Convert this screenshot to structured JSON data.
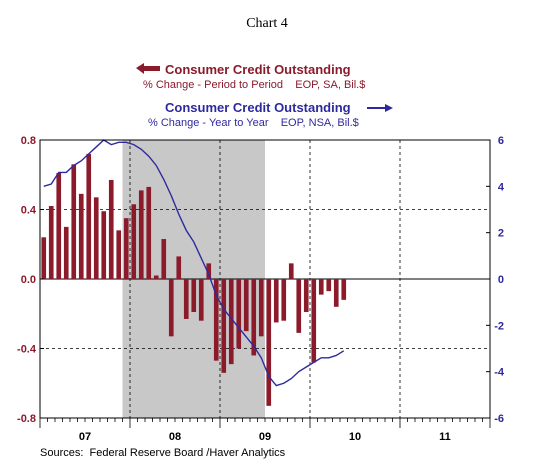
{
  "chart_data": {
    "type": "bar+line",
    "title": "Chart 4",
    "legend": {
      "bar_series": {
        "name": "Consumer Credit Outstanding",
        "subtitle": "% Change - Period to Period    EOP, SA, Bil.$",
        "color": "#8b1a2b",
        "axis": "left"
      },
      "line_series": {
        "name": "Consumer Credit Outstanding",
        "subtitle": "% Change - Year to Year    EOP, NSA, Bil.$",
        "color": "#2e2a9e",
        "axis": "right"
      }
    },
    "left_axis": {
      "ylim": [
        -0.8,
        0.8
      ],
      "ticks": [
        0.8,
        0.4,
        0.0,
        -0.4,
        -0.8
      ],
      "tick_labels": [
        "0.8",
        "0.4",
        "0.0",
        "-0.4",
        "-0.8"
      ],
      "color": "#8b1a2b"
    },
    "right_axis": {
      "ylim": [
        -6,
        6
      ],
      "ticks": [
        6,
        4,
        2,
        0,
        -2,
        -4,
        -6
      ],
      "tick_labels": [
        "6",
        "4",
        "2",
        "0",
        "-2",
        "-4",
        "-6"
      ],
      "color": "#2e2a9e"
    },
    "x_axis": {
      "start": "2007-01",
      "end": "2011-12",
      "year_labels": [
        "07",
        "08",
        "09",
        "10",
        "11"
      ]
    },
    "recession_shading": {
      "start": "2007-12",
      "end": "2009-06",
      "color": "#c8c8c8"
    },
    "bars": {
      "start": "2007-01",
      "values": [
        0.24,
        0.42,
        0.61,
        0.3,
        0.66,
        0.49,
        0.72,
        0.47,
        0.39,
        0.57,
        0.28,
        0.35,
        0.43,
        0.51,
        0.53,
        0.02,
        0.23,
        -0.33,
        0.13,
        -0.23,
        -0.19,
        -0.24,
        0.09,
        -0.47,
        -0.54,
        -0.49,
        -0.4,
        -0.3,
        -0.44,
        -0.33,
        -0.73,
        -0.25,
        -0.24,
        0.09,
        -0.31,
        -0.19,
        -0.48,
        -0.09,
        -0.07,
        -0.16,
        -0.12
      ]
    },
    "line": {
      "start": "2007-01",
      "values": [
        4.0,
        4.1,
        4.6,
        4.6,
        4.9,
        5.1,
        5.4,
        5.7,
        6.0,
        5.8,
        5.9,
        5.9,
        5.8,
        5.6,
        5.3,
        4.9,
        4.3,
        3.6,
        2.8,
        2.1,
        1.6,
        0.9,
        0.2,
        -0.7,
        -1.3,
        -1.7,
        -2.1,
        -2.5,
        -2.9,
        -3.4,
        -4.2,
        -4.6,
        -4.5,
        -4.3,
        -4.0,
        -3.8,
        -3.6,
        -3.4,
        -3.4,
        -3.3,
        -3.1
      ]
    },
    "grid": {
      "horizontal_dashed": true,
      "vertical_dashed_at_year_boundaries": true
    },
    "source": "Sources:  Federal Reserve Board /Haver Analytics"
  }
}
